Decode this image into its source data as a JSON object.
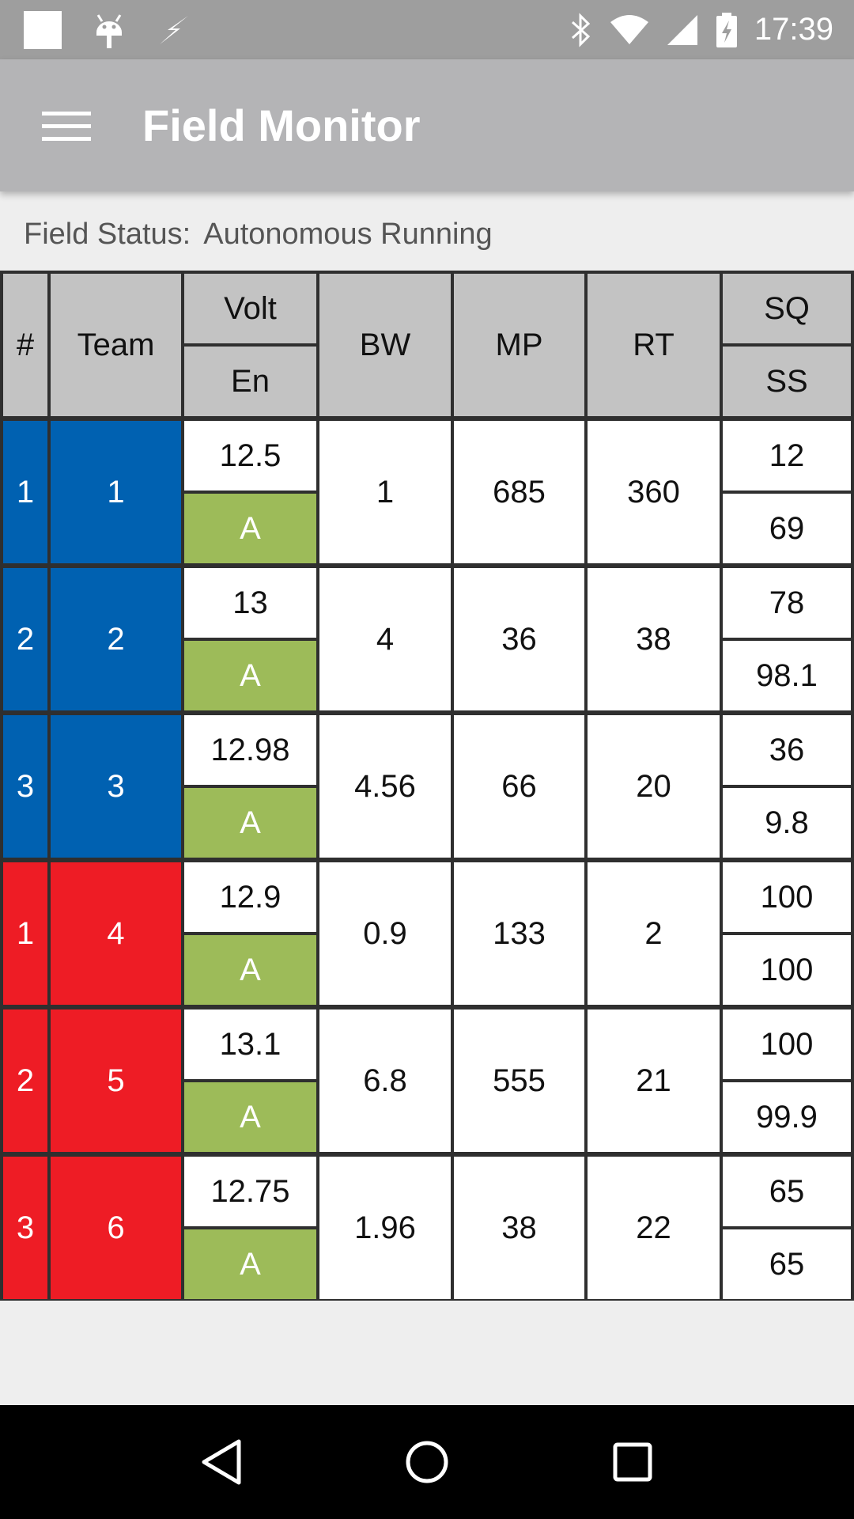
{
  "status_bar": {
    "time": "17:39",
    "left_icons": [
      "notification-square-icon",
      "android-debug-icon",
      "flash-icon"
    ],
    "right_icons": [
      "bluetooth-icon",
      "wifi-icon",
      "cell-signal-icon",
      "battery-charging-icon"
    ]
  },
  "app_bar": {
    "title": "Field Monitor",
    "menu_icon": "hamburger-menu-icon"
  },
  "field_status": {
    "label": "Field Status:",
    "value": "Autonomous Running"
  },
  "table": {
    "headers": {
      "num": "#",
      "team": "Team",
      "volt": "Volt",
      "en": "En",
      "bw": "BW",
      "mp": "MP",
      "rt": "RT",
      "sq": "SQ",
      "ss": "SS"
    },
    "colors": {
      "blue_alliance": "#0061b1",
      "red_alliance": "#ee1c25",
      "enabled": "#9dbb59",
      "header": "#c3c3c3"
    },
    "rows": [
      {
        "station": "1",
        "team": "1",
        "alliance": "blue",
        "volt": "12.5",
        "en": "A",
        "bw": "1",
        "mp": "685",
        "rt": "360",
        "sq": "12",
        "ss": "69"
      },
      {
        "station": "2",
        "team": "2",
        "alliance": "blue",
        "volt": "13",
        "en": "A",
        "bw": "4",
        "mp": "36",
        "rt": "38",
        "sq": "78",
        "ss": "98.1"
      },
      {
        "station": "3",
        "team": "3",
        "alliance": "blue",
        "volt": "12.98",
        "en": "A",
        "bw": "4.56",
        "mp": "66",
        "rt": "20",
        "sq": "36",
        "ss": "9.8"
      },
      {
        "station": "1",
        "team": "4",
        "alliance": "red",
        "volt": "12.9",
        "en": "A",
        "bw": "0.9",
        "mp": "133",
        "rt": "2",
        "sq": "100",
        "ss": "100"
      },
      {
        "station": "2",
        "team": "5",
        "alliance": "red",
        "volt": "13.1",
        "en": "A",
        "bw": "6.8",
        "mp": "555",
        "rt": "21",
        "sq": "100",
        "ss": "99.9"
      },
      {
        "station": "3",
        "team": "6",
        "alliance": "red",
        "volt": "12.75",
        "en": "A",
        "bw": "1.96",
        "mp": "38",
        "rt": "22",
        "sq": "65",
        "ss": "65"
      }
    ]
  },
  "nav_bar": {
    "icons": [
      "back-icon",
      "home-icon",
      "recents-icon"
    ]
  }
}
